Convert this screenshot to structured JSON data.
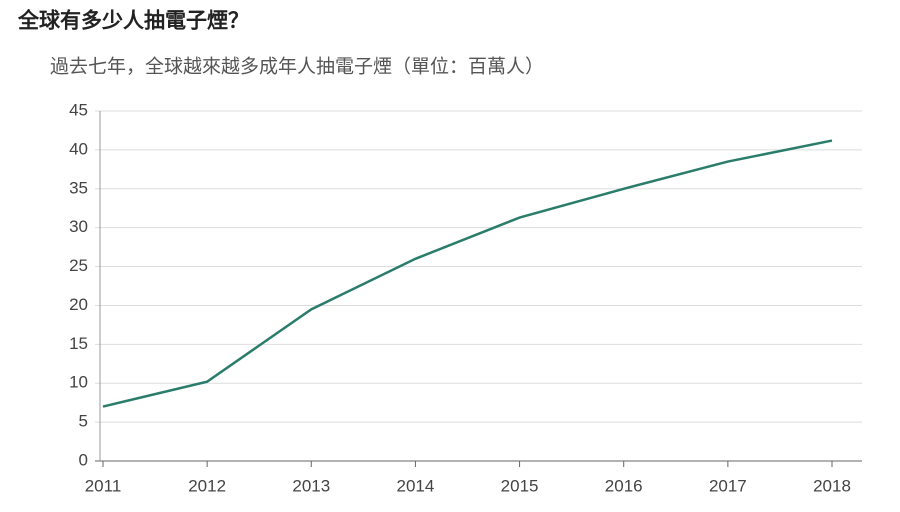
{
  "chart_data": {
    "type": "line",
    "title": "全球有多少人抽電子煙？",
    "subtitle": "過去七年，全球越來越多成年人抽電子煙（單位：百萬人）",
    "x": [
      2011,
      2012,
      2013,
      2014,
      2015,
      2016,
      2017,
      2018
    ],
    "xlim": [
      2011,
      2018
    ],
    "xticks": [
      2011,
      2012,
      2013,
      2014,
      2015,
      2016,
      2017,
      2018
    ],
    "series": [
      {
        "name": "成年人抽電子煙",
        "color": "#2b7d6b",
        "values": [
          7,
          10.2,
          19.5,
          26,
          31.3,
          35,
          38.5,
          41.2
        ]
      }
    ],
    "ylim": [
      0,
      45
    ],
    "yticks": [
      0,
      5,
      10,
      15,
      20,
      25,
      30,
      35,
      40,
      45
    ],
    "grid": true
  }
}
